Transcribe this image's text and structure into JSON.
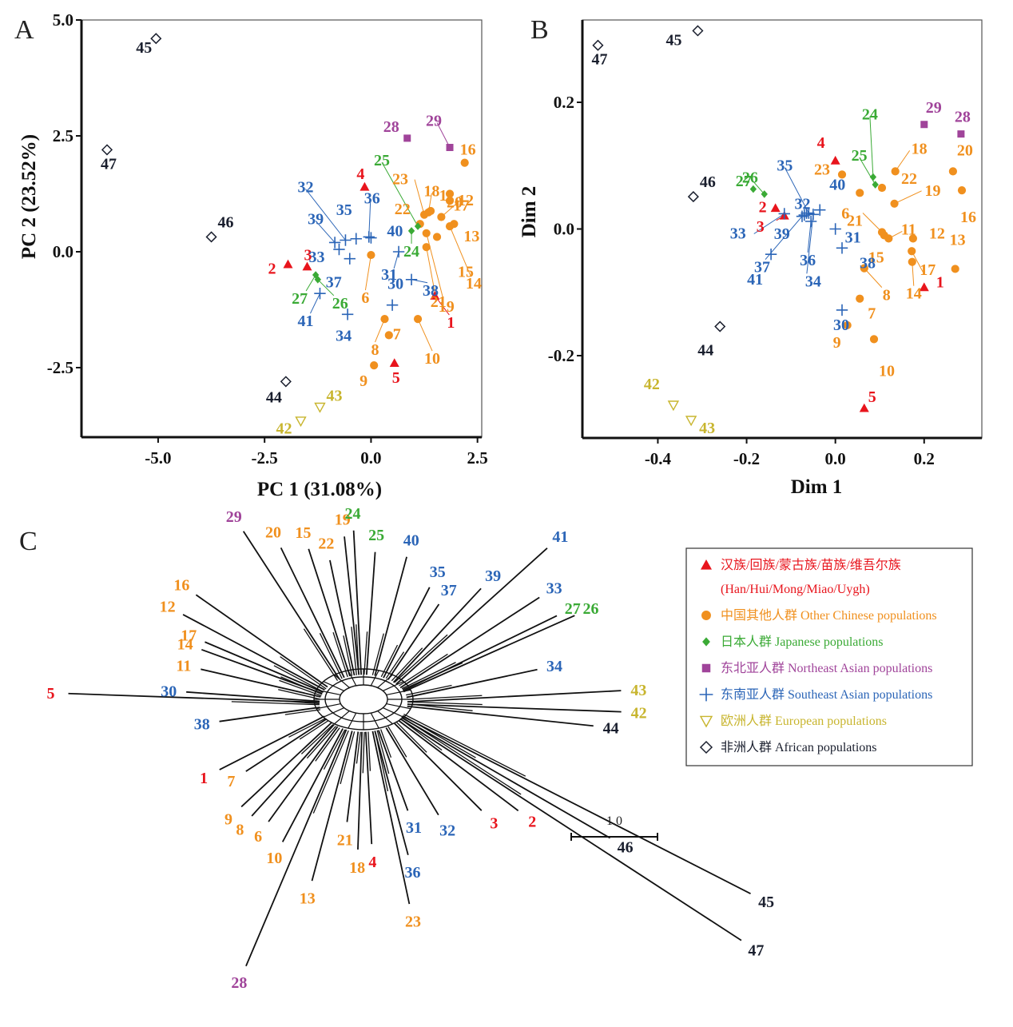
{
  "groups": {
    "han": {
      "color": "#e8141c",
      "shape": "triangle",
      "legend_cn": "汉族/回族/蒙古族/苗族/维吾尔族",
      "legend_en": "(Han/Hui/Mong/Miao/Uygh)"
    },
    "other_chinese": {
      "color": "#f0901e",
      "shape": "circle",
      "legend_cn": "中国其他人群",
      "legend_en": "Other Chinese populations"
    },
    "japanese": {
      "color": "#3aaa35",
      "shape": "diamond",
      "legend_cn": "日本人群",
      "legend_en": "Japanese populations"
    },
    "northeast_asian": {
      "color": "#a0449a",
      "shape": "square",
      "legend_cn": "东北亚人群",
      "legend_en": "Northeast Asian populations"
    },
    "southeast_asian": {
      "color": "#2b65b7",
      "shape": "plus",
      "legend_cn": "东南亚人群",
      "legend_en": "Southeast Asian populations"
    },
    "european": {
      "color": "#c8b52e",
      "shape": "triangle-down-open",
      "legend_cn": "欧洲人群",
      "legend_en": "European populations"
    },
    "african": {
      "color": "#1a1f2e",
      "shape": "diamond-open",
      "legend_cn": "非洲人群",
      "legend_en": "African populations"
    }
  },
  "legend_order": [
    "han",
    "other_chinese",
    "japanese",
    "northeast_asian",
    "southeast_asian",
    "european",
    "african"
  ],
  "chart_data": [
    {
      "panel": "A",
      "type": "scatter",
      "title": "",
      "xlabel": "PC  1 (31.08%)",
      "ylabel": "PC  2 (23.52%)",
      "xlim": [
        -6.8,
        2.6
      ],
      "ylim": [
        -4.0,
        5.0
      ],
      "xticks": [
        -5.0,
        -2.5,
        0.0,
        2.5
      ],
      "xtick_labels": [
        "-5.0",
        "-2.5",
        "0.0",
        "2.5"
      ],
      "yticks": [
        5.0,
        2.5,
        0.0,
        -2.5
      ],
      "ytick_labels": [
        "5.0",
        "2.5",
        "0.0",
        "-2.5"
      ],
      "grid": false,
      "points": [
        {
          "id": "1",
          "group": "han",
          "x": 1.5,
          "y": -0.95
        },
        {
          "id": "2",
          "group": "han",
          "x": -1.95,
          "y": -0.27
        },
        {
          "id": "3",
          "group": "han",
          "x": -1.5,
          "y": -0.32
        },
        {
          "id": "4",
          "group": "han",
          "x": -0.15,
          "y": 1.4
        },
        {
          "id": "5",
          "group": "han",
          "x": 0.55,
          "y": -2.4
        },
        {
          "id": "6",
          "group": "other_chinese",
          "x": 0.0,
          "y": -0.07
        },
        {
          "id": "7",
          "group": "other_chinese",
          "x": 0.42,
          "y": -1.8
        },
        {
          "id": "8",
          "group": "other_chinese",
          "x": 0.32,
          "y": -1.45
        },
        {
          "id": "9",
          "group": "other_chinese",
          "x": 0.07,
          "y": -2.45
        },
        {
          "id": "10",
          "group": "other_chinese",
          "x": 1.1,
          "y": -1.45
        },
        {
          "id": "11",
          "group": "other_chinese",
          "x": 1.4,
          "y": 0.88
        },
        {
          "id": "12",
          "group": "other_chinese",
          "x": 1.85,
          "y": 1.1
        },
        {
          "id": "13",
          "group": "other_chinese",
          "x": 1.95,
          "y": 0.6
        },
        {
          "id": "14",
          "group": "other_chinese",
          "x": 1.85,
          "y": 0.55
        },
        {
          "id": "15",
          "group": "other_chinese",
          "x": 1.55,
          "y": 0.32
        },
        {
          "id": "16",
          "group": "other_chinese",
          "x": 2.2,
          "y": 1.92
        },
        {
          "id": "17",
          "group": "other_chinese",
          "x": 1.65,
          "y": 0.75
        },
        {
          "id": "18",
          "group": "other_chinese",
          "x": 1.35,
          "y": 0.85
        },
        {
          "id": "19",
          "group": "other_chinese",
          "x": 1.3,
          "y": 0.4
        },
        {
          "id": "20",
          "group": "other_chinese",
          "x": 1.85,
          "y": 1.25
        },
        {
          "id": "21",
          "group": "other_chinese",
          "x": 1.3,
          "y": 0.1
        },
        {
          "id": "22",
          "group": "other_chinese",
          "x": 1.15,
          "y": 0.6
        },
        {
          "id": "23",
          "group": "other_chinese",
          "x": 1.25,
          "y": 0.8
        },
        {
          "id": "24",
          "group": "japanese",
          "x": 0.95,
          "y": 0.45
        },
        {
          "id": "25",
          "group": "japanese",
          "x": 1.1,
          "y": 0.55
        },
        {
          "id": "26",
          "group": "japanese",
          "x": -1.25,
          "y": -0.6
        },
        {
          "id": "27",
          "group": "japanese",
          "x": -1.3,
          "y": -0.5
        },
        {
          "id": "28",
          "group": "northeast_asian",
          "x": 0.85,
          "y": 2.45
        },
        {
          "id": "29",
          "group": "northeast_asian",
          "x": 1.85,
          "y": 2.25
        },
        {
          "id": "30",
          "group": "southeast_asian",
          "x": 0.5,
          "y": -1.15
        },
        {
          "id": "31",
          "group": "southeast_asian",
          "x": 0.65,
          "y": -0.0
        },
        {
          "id": "32",
          "group": "southeast_asian",
          "x": -0.6,
          "y": 0.25
        },
        {
          "id": "33",
          "group": "southeast_asian",
          "x": -0.75,
          "y": 0.05
        },
        {
          "id": "34",
          "group": "southeast_asian",
          "x": -0.55,
          "y": -1.35
        },
        {
          "id": "35",
          "group": "southeast_asian",
          "x": -0.35,
          "y": 0.28
        },
        {
          "id": "36",
          "group": "southeast_asian",
          "x": -0.05,
          "y": 0.32
        },
        {
          "id": "37",
          "group": "southeast_asian",
          "x": -0.5,
          "y": -0.15
        },
        {
          "id": "38",
          "group": "southeast_asian",
          "x": 0.95,
          "y": -0.6
        },
        {
          "id": "39",
          "group": "southeast_asian",
          "x": -0.85,
          "y": 0.2
        },
        {
          "id": "40",
          "group": "southeast_asian",
          "x": 0.0,
          "y": 0.3
        },
        {
          "id": "41",
          "group": "southeast_asian",
          "x": -1.2,
          "y": -0.9
        },
        {
          "id": "42",
          "group": "european",
          "x": -1.65,
          "y": -3.65
        },
        {
          "id": "43",
          "group": "european",
          "x": -1.2,
          "y": -3.35
        },
        {
          "id": "44",
          "group": "african",
          "x": -2.0,
          "y": -2.8
        },
        {
          "id": "45",
          "group": "african",
          "x": -5.05,
          "y": 4.6
        },
        {
          "id": "46",
          "group": "african",
          "x": -3.75,
          "y": 0.32
        },
        {
          "id": "47",
          "group": "african",
          "x": -6.2,
          "y": 2.2
        }
      ]
    },
    {
      "panel": "B",
      "type": "scatter",
      "title": "",
      "xlabel": "Dim  1",
      "ylabel": "Dim  2",
      "xlim": [
        -0.57,
        0.33
      ],
      "ylim": [
        -0.33,
        0.33
      ],
      "xticks": [
        -0.4,
        -0.2,
        0.0,
        0.2
      ],
      "xtick_labels": [
        "-0.4",
        "-0.2",
        "0.0",
        "0.2"
      ],
      "yticks": [
        0.2,
        0.0,
        -0.2
      ],
      "ytick_labels": [
        "0.2",
        "0.0",
        "-0.2"
      ],
      "grid": false,
      "points": [
        {
          "id": "1",
          "group": "han",
          "x": 0.2,
          "y": -0.092
        },
        {
          "id": "2",
          "group": "han",
          "x": -0.135,
          "y": 0.033
        },
        {
          "id": "3",
          "group": "han",
          "x": -0.115,
          "y": 0.021
        },
        {
          "id": "4",
          "group": "han",
          "x": 0.0,
          "y": 0.108
        },
        {
          "id": "5",
          "group": "han",
          "x": 0.065,
          "y": -0.283
        },
        {
          "id": "6",
          "group": "other_chinese",
          "x": 0.055,
          "y": 0.057
        },
        {
          "id": "7",
          "group": "other_chinese",
          "x": 0.055,
          "y": -0.11
        },
        {
          "id": "8",
          "group": "other_chinese",
          "x": 0.065,
          "y": -0.062
        },
        {
          "id": "9",
          "group": "other_chinese",
          "x": 0.027,
          "y": -0.152
        },
        {
          "id": "10",
          "group": "other_chinese",
          "x": 0.087,
          "y": -0.174
        },
        {
          "id": "11",
          "group": "other_chinese",
          "x": 0.12,
          "y": -0.015
        },
        {
          "id": "12",
          "group": "other_chinese",
          "x": 0.175,
          "y": -0.015
        },
        {
          "id": "13",
          "group": "other_chinese",
          "x": 0.27,
          "y": -0.063
        },
        {
          "id": "14",
          "group": "other_chinese",
          "x": 0.173,
          "y": -0.052
        },
        {
          "id": "15",
          "group": "other_chinese",
          "x": 0.11,
          "y": -0.01
        },
        {
          "id": "16",
          "group": "other_chinese",
          "x": 0.285,
          "y": 0.061
        },
        {
          "id": "17",
          "group": "other_chinese",
          "x": 0.172,
          "y": -0.035
        },
        {
          "id": "18",
          "group": "other_chinese",
          "x": 0.135,
          "y": 0.091
        },
        {
          "id": "19",
          "group": "other_chinese",
          "x": 0.133,
          "y": 0.04
        },
        {
          "id": "20",
          "group": "other_chinese",
          "x": 0.265,
          "y": 0.091
        },
        {
          "id": "21",
          "group": "other_chinese",
          "x": 0.105,
          "y": -0.005
        },
        {
          "id": "22",
          "group": "other_chinese",
          "x": 0.105,
          "y": 0.065
        },
        {
          "id": "23",
          "group": "other_chinese",
          "x": 0.015,
          "y": 0.086
        },
        {
          "id": "24",
          "group": "japanese",
          "x": 0.085,
          "y": 0.082
        },
        {
          "id": "25",
          "group": "japanese",
          "x": 0.09,
          "y": 0.07
        },
        {
          "id": "26",
          "group": "japanese",
          "x": -0.185,
          "y": 0.063
        },
        {
          "id": "27",
          "group": "japanese",
          "x": -0.16,
          "y": 0.055
        },
        {
          "id": "28",
          "group": "northeast_asian",
          "x": 0.283,
          "y": 0.15
        },
        {
          "id": "29",
          "group": "northeast_asian",
          "x": 0.2,
          "y": 0.165
        },
        {
          "id": "30",
          "group": "southeast_asian",
          "x": 0.015,
          "y": -0.128
        },
        {
          "id": "31",
          "group": "southeast_asian",
          "x": 0.0,
          "y": 0.0
        },
        {
          "id": "32",
          "group": "southeast_asian",
          "x": -0.065,
          "y": 0.025
        },
        {
          "id": "33",
          "group": "southeast_asian",
          "x": -0.115,
          "y": 0.024
        },
        {
          "id": "34",
          "group": "southeast_asian",
          "x": -0.05,
          "y": 0.023
        },
        {
          "id": "35",
          "group": "southeast_asian",
          "x": -0.06,
          "y": 0.025
        },
        {
          "id": "36",
          "group": "southeast_asian",
          "x": -0.055,
          "y": 0.012
        },
        {
          "id": "37",
          "group": "southeast_asian",
          "x": -0.075,
          "y": 0.02
        },
        {
          "id": "38",
          "group": "southeast_asian",
          "x": 0.015,
          "y": -0.03
        },
        {
          "id": "39",
          "group": "southeast_asian",
          "x": -0.07,
          "y": 0.022
        },
        {
          "id": "40",
          "group": "southeast_asian",
          "x": -0.035,
          "y": 0.03
        },
        {
          "id": "41",
          "group": "southeast_asian",
          "x": -0.145,
          "y": -0.04
        },
        {
          "id": "42",
          "group": "european",
          "x": -0.365,
          "y": -0.278
        },
        {
          "id": "43",
          "group": "european",
          "x": -0.325,
          "y": -0.302
        },
        {
          "id": "44",
          "group": "african",
          "x": -0.26,
          "y": -0.154
        },
        {
          "id": "45",
          "group": "african",
          "x": -0.31,
          "y": 0.313
        },
        {
          "id": "46",
          "group": "african",
          "x": -0.32,
          "y": 0.051
        },
        {
          "id": "47",
          "group": "african",
          "x": -0.535,
          "y": 0.29
        }
      ]
    },
    {
      "panel": "C",
      "type": "network",
      "title": "",
      "scale_bar_label": "1.0",
      "tips": [
        {
          "id": "29",
          "group": "northeast_asian",
          "angle": 123,
          "length": 3.3
        },
        {
          "id": "16",
          "group": "other_chinese",
          "angle": 145,
          "length": 3.0
        },
        {
          "id": "12",
          "group": "other_chinese",
          "angle": 152,
          "length": 3.0
        },
        {
          "id": "17",
          "group": "other_chinese",
          "angle": 157,
          "length": 2.4
        },
        {
          "id": "14",
          "group": "other_chinese",
          "angle": 160,
          "length": 2.4
        },
        {
          "id": "11",
          "group": "other_chinese",
          "angle": 167,
          "length": 2.3
        },
        {
          "id": "20",
          "group": "other_chinese",
          "angle": 116,
          "length": 2.7
        },
        {
          "id": "15",
          "group": "other_chinese",
          "angle": 108,
          "length": 2.5
        },
        {
          "id": "22",
          "group": "other_chinese",
          "angle": 102,
          "length": 2.2
        },
        {
          "id": "19",
          "group": "other_chinese",
          "angle": 96,
          "length": 2.6
        },
        {
          "id": "24",
          "group": "japanese",
          "angle": 93,
          "length": 2.7
        },
        {
          "id": "25",
          "group": "japanese",
          "angle": 86,
          "length": 2.3
        },
        {
          "id": "40",
          "group": "southeast_asian",
          "angle": 75,
          "length": 2.3
        },
        {
          "id": "35",
          "group": "southeast_asian",
          "angle": 63,
          "length": 1.9
        },
        {
          "id": "37",
          "group": "southeast_asian",
          "angle": 56,
          "length": 1.7
        },
        {
          "id": "39",
          "group": "southeast_asian",
          "angle": 47,
          "length": 2.4
        },
        {
          "id": "41",
          "group": "southeast_asian",
          "angle": 42,
          "length": 3.8
        },
        {
          "id": "33",
          "group": "southeast_asian",
          "angle": 33,
          "length": 3.1
        },
        {
          "id": "27",
          "group": "japanese",
          "angle": 26,
          "length": 3.2
        },
        {
          "id": "26",
          "group": "japanese",
          "angle": 24,
          "length": 3.5
        },
        {
          "id": "34",
          "group": "southeast_asian",
          "angle": 12,
          "length": 2.5
        },
        {
          "id": "43",
          "group": "european",
          "angle": 3,
          "length": 4.0
        },
        {
          "id": "42",
          "group": "european",
          "angle": -2,
          "length": 4.0
        },
        {
          "id": "44",
          "group": "african",
          "angle": -6,
          "length": 3.5
        },
        {
          "id": "46",
          "group": "african",
          "angle": -30,
          "length": 4.5
        },
        {
          "id": "45",
          "group": "african",
          "angle": -27,
          "length": 7.3
        },
        {
          "id": "47",
          "group": "african",
          "angle": -33,
          "length": 7.6
        },
        {
          "id": "2",
          "group": "han",
          "angle": -37,
          "length": 2.8
        },
        {
          "id": "3",
          "group": "han",
          "angle": -45,
          "length": 2.3
        },
        {
          "id": "32",
          "group": "southeast_asian",
          "angle": -59,
          "length": 1.9
        },
        {
          "id": "31",
          "group": "southeast_asian",
          "angle": -70,
          "length": 1.6
        },
        {
          "id": "36",
          "group": "southeast_asian",
          "angle": -75,
          "length": 2.4
        },
        {
          "id": "23",
          "group": "other_chinese",
          "angle": -78,
          "length": 3.3
        },
        {
          "id": "4",
          "group": "han",
          "angle": -87,
          "length": 2.1
        },
        {
          "id": "18",
          "group": "other_chinese",
          "angle": -92,
          "length": 2.2
        },
        {
          "id": "21",
          "group": "other_chinese",
          "angle": -97,
          "length": 1.7
        },
        {
          "id": "13",
          "group": "other_chinese",
          "angle": -105,
          "length": 2.9
        },
        {
          "id": "28",
          "group": "northeast_asian",
          "angle": -113,
          "length": 4.8
        },
        {
          "id": "10",
          "group": "other_chinese",
          "angle": -118,
          "length": 2.4
        },
        {
          "id": "6",
          "group": "other_chinese",
          "angle": -126,
          "length": 2.2
        },
        {
          "id": "8",
          "group": "other_chinese",
          "angle": -132,
          "length": 2.3
        },
        {
          "id": "9",
          "group": "other_chinese",
          "angle": -137,
          "length": 2.3
        },
        {
          "id": "7",
          "group": "other_chinese",
          "angle": -147,
          "length": 1.8
        },
        {
          "id": "1",
          "group": "han",
          "angle": -153,
          "length": 2.2
        },
        {
          "id": "38",
          "group": "southeast_asian",
          "angle": -172,
          "length": 1.9
        },
        {
          "id": "30",
          "group": "southeast_asian",
          "angle": 176,
          "length": 2.5
        },
        {
          "id": "5",
          "group": "han",
          "angle": 178,
          "length": 4.7
        }
      ]
    }
  ],
  "panels": {
    "a": {
      "letter": "A"
    },
    "b": {
      "letter": "B"
    },
    "c": {
      "letter": "C"
    }
  }
}
